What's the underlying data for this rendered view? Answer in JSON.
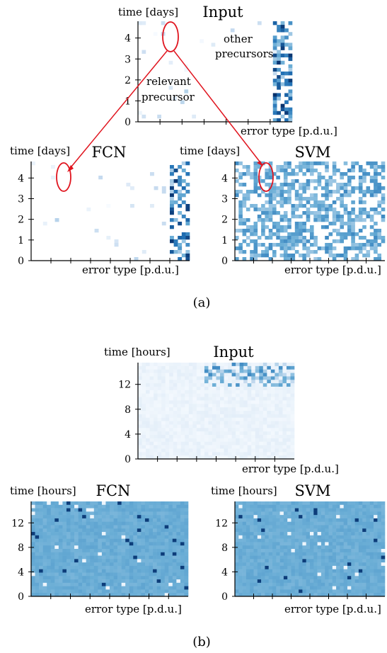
{
  "figure": {
    "panels": [
      {
        "label": "(a)"
      },
      {
        "label": "(b)"
      }
    ]
  },
  "colors": {
    "light": "#e7f0fb",
    "mid": "#6aaed6",
    "dark": "#08306b",
    "annotation": "#e0141e"
  },
  "annotations": {
    "relevant_line1": "relevant",
    "relevant_line2": "precursor",
    "other_line1": "other",
    "other_line2": "precursors"
  },
  "chart_data": [
    {
      "id": "a-input",
      "type": "heatmap",
      "title": "Input",
      "xlabel": "error type [p.d.u.]",
      "ylabel": "time [days]",
      "yticks": [
        0,
        1,
        2,
        3,
        4
      ],
      "ylim": [
        0,
        4.8
      ],
      "scale": "sparse",
      "x_tick_marks": 6,
      "colorscale": "blues",
      "highlight": "relevant precursor at time ~4"
    },
    {
      "id": "a-fcn",
      "type": "heatmap",
      "title": "FCN",
      "xlabel": "error type [p.d.u.]",
      "ylabel": "time [days]",
      "yticks": [
        0,
        1,
        2,
        3,
        4
      ],
      "ylim": [
        0,
        4.8
      ],
      "scale": "sparse",
      "x_tick_marks": 7,
      "colorscale": "blues"
    },
    {
      "id": "a-svm",
      "type": "heatmap",
      "title": "SVM",
      "xlabel": "error type [p.d.u.]",
      "ylabel": "time [days]",
      "yticks": [
        0,
        1,
        2,
        3,
        4
      ],
      "ylim": [
        0,
        4.8
      ],
      "scale": "dense",
      "x_tick_marks": 7,
      "colorscale": "blues"
    },
    {
      "id": "b-input",
      "type": "heatmap",
      "title": "Input",
      "xlabel": "error type [p.d.u.]",
      "ylabel": "time [hours]",
      "yticks": [
        0,
        4,
        8,
        12
      ],
      "ylim": [
        0,
        15.5
      ],
      "scale": "light",
      "x_tick_marks": 7,
      "colorscale": "blues"
    },
    {
      "id": "b-fcn",
      "type": "heatmap",
      "title": "FCN",
      "xlabel": "error type [p.d.u.]",
      "ylabel": "time [hours]",
      "yticks": [
        0,
        4,
        8,
        12
      ],
      "ylim": [
        0,
        15.5
      ],
      "scale": "medium",
      "x_tick_marks": 7,
      "colorscale": "blues"
    },
    {
      "id": "b-svm",
      "type": "heatmap",
      "title": "SVM",
      "xlabel": "error type [p.d.u.]",
      "ylabel": "time [hours]",
      "yticks": [
        0,
        4,
        8,
        12
      ],
      "ylim": [
        0,
        15.5
      ],
      "scale": "medium",
      "x_tick_marks": 7,
      "colorscale": "blues"
    }
  ]
}
